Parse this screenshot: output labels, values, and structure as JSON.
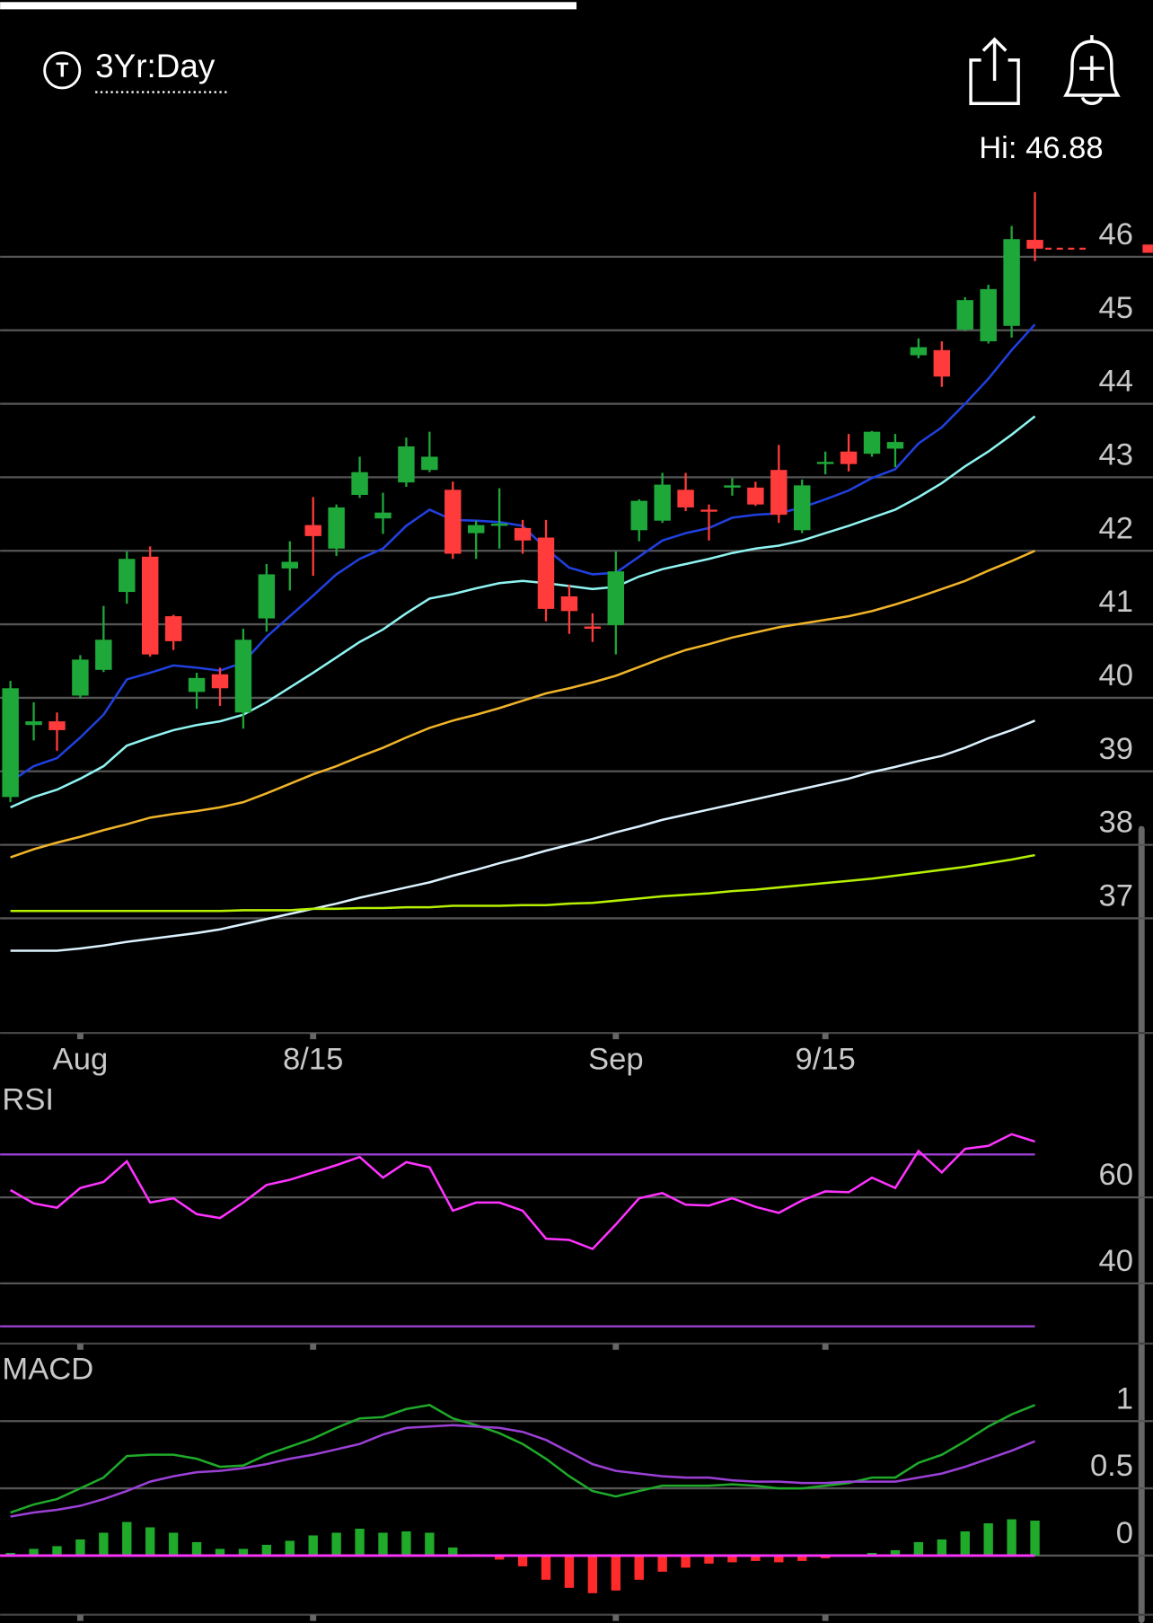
{
  "header": {
    "icon": "T",
    "period": "3Yr:Day"
  },
  "chart_data": [
    {
      "type": "candlestick",
      "high_label": "Hi: 46.88",
      "categories": [
        null,
        null,
        null,
        "Aug",
        null,
        null,
        null,
        null,
        null,
        null,
        null,
        null,
        null,
        "8/15",
        null,
        null,
        null,
        null,
        null,
        null,
        null,
        null,
        null,
        null,
        null,
        null,
        "Sep",
        null,
        null,
        null,
        null,
        null,
        null,
        null,
        null,
        "9/15",
        null,
        null,
        null,
        null,
        null,
        null,
        null,
        null,
        null
      ],
      "open": [
        38.65,
        39.63,
        39.68,
        40.03,
        40.38,
        41.44,
        41.92,
        41.11,
        40.08,
        40.32,
        39.8,
        41.08,
        41.76,
        42.35,
        42.03,
        42.76,
        42.44,
        42.93,
        43.1,
        42.83,
        42.24,
        42.34,
        42.31,
        42.18,
        41.38,
        40.97,
        40.99,
        42.28,
        42.41,
        42.83,
        42.56,
        42.86,
        42.86,
        43.1,
        42.28,
        43.18,
        43.35,
        43.32,
        43.39,
        44.66,
        44.73,
        45.01,
        44.85,
        45.06,
        46.23
      ],
      "high": [
        40.23,
        39.94,
        39.8,
        40.58,
        41.25,
        41.99,
        42.06,
        41.13,
        40.34,
        40.41,
        40.94,
        41.82,
        42.13,
        42.73,
        42.63,
        43.28,
        42.79,
        43.54,
        43.62,
        42.94,
        42.41,
        42.85,
        42.42,
        42.42,
        41.54,
        41.15,
        41.99,
        42.7,
        43.06,
        43.06,
        42.63,
        42.99,
        42.94,
        43.44,
        42.97,
        43.35,
        43.59,
        43.63,
        43.59,
        44.89,
        44.85,
        45.45,
        45.62,
        46.42,
        46.88
      ],
      "low": [
        38.58,
        39.42,
        39.28,
        39.99,
        40.35,
        41.28,
        40.56,
        40.65,
        39.85,
        39.89,
        39.58,
        40.9,
        41.46,
        41.66,
        41.93,
        42.72,
        42.23,
        42.87,
        43.07,
        41.89,
        41.89,
        42.03,
        41.96,
        41.04,
        40.87,
        40.76,
        40.59,
        42.13,
        42.38,
        42.54,
        42.14,
        42.75,
        42.61,
        42.38,
        42.24,
        43.04,
        43.08,
        43.28,
        43.14,
        44.62,
        44.23,
        44.99,
        44.82,
        44.9,
        45.94
      ],
      "close": [
        40.13,
        39.68,
        39.56,
        40.52,
        40.79,
        41.89,
        40.59,
        40.77,
        40.27,
        40.13,
        40.79,
        41.68,
        41.85,
        42.2,
        42.59,
        43.07,
        42.52,
        43.42,
        43.28,
        41.96,
        42.35,
        42.37,
        42.14,
        41.21,
        41.18,
        40.94,
        41.72,
        42.68,
        42.9,
        42.59,
        42.54,
        42.89,
        42.63,
        42.49,
        42.89,
        43.21,
        43.18,
        43.62,
        43.48,
        44.77,
        44.37,
        45.41,
        45.56,
        46.24,
        46.11
      ],
      "up_color": "#1fa83a",
      "down_color": "#ff3b3b",
      "series": [
        {
          "color": "#2040e0",
          "values": [
            38.86,
            39.07,
            39.18,
            39.46,
            39.77,
            40.25,
            40.34,
            40.44,
            40.41,
            40.37,
            40.48,
            40.83,
            41.11,
            41.39,
            41.68,
            41.89,
            42.03,
            42.34,
            42.56,
            42.42,
            42.41,
            42.39,
            42.34,
            42.03,
            41.77,
            41.68,
            41.7,
            41.92,
            42.14,
            42.24,
            42.31,
            42.45,
            42.49,
            42.51,
            42.59,
            42.7,
            42.82,
            42.99,
            43.11,
            43.46,
            43.68,
            44.0,
            44.34,
            44.73,
            45.08
          ]
        },
        {
          "color": "#8ff4f0",
          "values": [
            38.51,
            38.65,
            38.75,
            38.9,
            39.07,
            39.35,
            39.46,
            39.56,
            39.63,
            39.68,
            39.77,
            39.94,
            40.14,
            40.34,
            40.55,
            40.76,
            40.93,
            41.15,
            41.35,
            41.41,
            41.49,
            41.56,
            41.59,
            41.56,
            41.52,
            41.48,
            41.51,
            41.65,
            41.75,
            41.82,
            41.89,
            41.97,
            42.03,
            42.07,
            42.14,
            42.24,
            42.34,
            42.45,
            42.56,
            42.73,
            42.92,
            43.15,
            43.35,
            43.58,
            43.83
          ]
        },
        {
          "color": "#f0b429",
          "values": [
            37.83,
            37.94,
            38.03,
            38.11,
            38.2,
            38.28,
            38.37,
            38.42,
            38.46,
            38.51,
            38.58,
            38.7,
            38.83,
            38.96,
            39.07,
            39.2,
            39.32,
            39.46,
            39.59,
            39.69,
            39.77,
            39.86,
            39.96,
            40.06,
            40.13,
            40.21,
            40.3,
            40.42,
            40.54,
            40.65,
            40.73,
            40.82,
            40.89,
            40.96,
            41.01,
            41.06,
            41.11,
            41.18,
            41.27,
            41.37,
            41.48,
            41.59,
            41.73,
            41.86,
            42.0
          ]
        },
        {
          "color": "#dcf2ff",
          "values": [
            36.56,
            36.56,
            36.56,
            36.59,
            36.63,
            36.68,
            36.72,
            36.76,
            36.8,
            36.85,
            36.92,
            36.99,
            37.06,
            37.13,
            37.2,
            37.28,
            37.35,
            37.42,
            37.49,
            37.58,
            37.66,
            37.75,
            37.83,
            37.92,
            38.0,
            38.08,
            38.17,
            38.25,
            38.34,
            38.41,
            38.48,
            38.55,
            38.62,
            38.69,
            38.76,
            38.83,
            38.9,
            38.99,
            39.06,
            39.14,
            39.21,
            39.32,
            39.45,
            39.56,
            39.69
          ]
        },
        {
          "color": "#b5f000",
          "values": [
            37.1,
            37.1,
            37.1,
            37.1,
            37.1,
            37.1,
            37.1,
            37.1,
            37.1,
            37.1,
            37.11,
            37.11,
            37.11,
            37.13,
            37.13,
            37.14,
            37.14,
            37.15,
            37.15,
            37.17,
            37.17,
            37.17,
            37.18,
            37.18,
            37.2,
            37.21,
            37.24,
            37.27,
            37.3,
            37.32,
            37.34,
            37.37,
            37.39,
            37.42,
            37.45,
            37.48,
            37.51,
            37.54,
            37.58,
            37.62,
            37.66,
            37.7,
            37.75,
            37.8,
            37.86
          ]
        }
      ],
      "ylim": [
        35.44,
        47.24
      ],
      "yticks": [
        37,
        38,
        39,
        40,
        41,
        42,
        43,
        44,
        45,
        46
      ],
      "grid": true
    },
    {
      "type": "line",
      "title": "RSI",
      "series": [
        {
          "color": "#ff33ff",
          "values": [
            61.7,
            58.6,
            57.6,
            62.2,
            63.6,
            68.4,
            58.8,
            59.8,
            56.1,
            55.2,
            58.8,
            62.9,
            64.1,
            65.8,
            67.5,
            69.4,
            64.6,
            68.2,
            67.0,
            56.9,
            58.8,
            58.8,
            56.9,
            50.4,
            50.1,
            48.0,
            53.7,
            59.8,
            61.0,
            58.3,
            58.1,
            59.8,
            57.8,
            56.4,
            59.3,
            61.4,
            61.2,
            64.6,
            62.2,
            70.8,
            65.8,
            71.3,
            72.0,
            74.7,
            73.0
          ]
        }
      ],
      "levels": [
        70,
        30
      ],
      "level_color": "#9a3fd1",
      "ylim": [
        26,
        78.5
      ],
      "yticks": [
        40,
        60
      ],
      "grid": true
    },
    {
      "type": "macd",
      "title": "MACD",
      "series": [
        {
          "color": "#1faa2a",
          "values": [
            0.32,
            0.38,
            0.42,
            0.5,
            0.58,
            0.74,
            0.75,
            0.75,
            0.72,
            0.66,
            0.67,
            0.75,
            0.81,
            0.87,
            0.95,
            1.02,
            1.03,
            1.09,
            1.12,
            1.02,
            0.97,
            0.91,
            0.83,
            0.72,
            0.59,
            0.48,
            0.44,
            0.48,
            0.52,
            0.52,
            0.52,
            0.53,
            0.52,
            0.5,
            0.5,
            0.52,
            0.54,
            0.58,
            0.58,
            0.69,
            0.75,
            0.85,
            0.96,
            1.05,
            1.12
          ]
        },
        {
          "color": "#9b40d6",
          "values": [
            0.29,
            0.32,
            0.34,
            0.37,
            0.42,
            0.48,
            0.55,
            0.59,
            0.62,
            0.63,
            0.65,
            0.68,
            0.72,
            0.75,
            0.79,
            0.83,
            0.9,
            0.95,
            0.96,
            0.97,
            0.96,
            0.95,
            0.92,
            0.86,
            0.77,
            0.68,
            0.63,
            0.61,
            0.59,
            0.58,
            0.58,
            0.56,
            0.55,
            0.55,
            0.54,
            0.54,
            0.55,
            0.55,
            0.55,
            0.58,
            0.61,
            0.66,
            0.72,
            0.78,
            0.85
          ]
        }
      ],
      "histogram": {
        "up_color": "#1faa2a",
        "down_color": "#ff2a2a",
        "values": [
          0.02,
          0.05,
          0.07,
          0.12,
          0.17,
          0.25,
          0.21,
          0.17,
          0.1,
          0.05,
          0.05,
          0.08,
          0.11,
          0.15,
          0.17,
          0.2,
          0.17,
          0.18,
          0.17,
          0.06,
          0.01,
          -0.03,
          -0.08,
          -0.18,
          -0.24,
          -0.28,
          -0.26,
          -0.18,
          -0.12,
          -0.09,
          -0.06,
          -0.05,
          -0.04,
          -0.05,
          -0.04,
          -0.02,
          0,
          0.02,
          0.04,
          0.1,
          0.12,
          0.18,
          0.24,
          0.27,
          0.26
        ]
      },
      "zero_color": "#ff33ff",
      "ylim": [
        -0.44,
        1.25
      ],
      "yticks": [
        0,
        0.5,
        1
      ],
      "grid": true
    }
  ]
}
